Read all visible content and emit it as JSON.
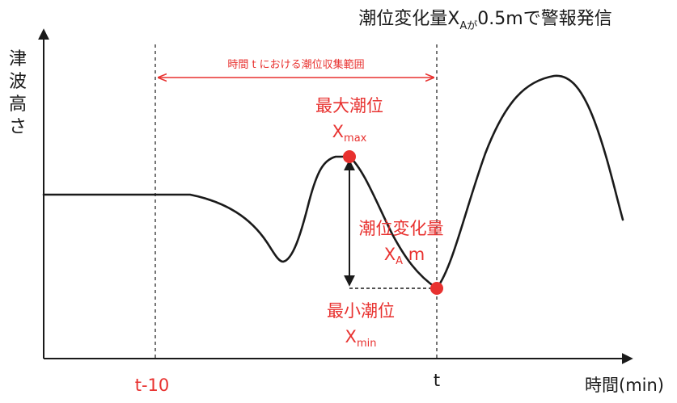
{
  "title": {
    "pre": "潮位変化量X",
    "sub": "Aが",
    "post": "0.5mで警報発信"
  },
  "y_axis_label": [
    "津",
    "波",
    "高",
    "さ"
  ],
  "x_axis_label": "時間(min)",
  "ticks": {
    "t_minus_10": "t-10",
    "t": "t"
  },
  "range_label": "時間 t における潮位収集範囲",
  "max_label": {
    "line1": "最大潮位",
    "var": "X",
    "sub": "max"
  },
  "change_label": {
    "line1": "潮位変化量",
    "var": "X",
    "sub": "A",
    "unit": " m"
  },
  "min_label": {
    "line1": "最小潮位",
    "var": "X",
    "sub": "min"
  },
  "colors": {
    "accent": "#e8312f",
    "ink": "#1a1a1a"
  }
}
